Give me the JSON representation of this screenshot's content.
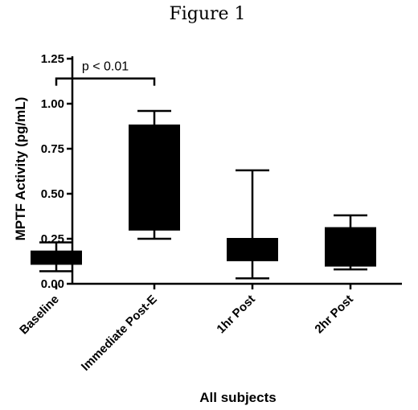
{
  "chart_data": {
    "type": "box",
    "title": "Figure 1",
    "xlabel": "All subjects",
    "ylabel": "MPTF Activity (pg/mL)",
    "ylim": [
      0,
      1.25
    ],
    "yticks": [
      "0.00",
      "0.25",
      "0.50",
      "0.75",
      "1.00",
      "1.25"
    ],
    "categories": [
      "Baseline",
      "Immediate Post-E",
      "1hr Post",
      "2hr Post"
    ],
    "boxes": [
      {
        "category": "Baseline",
        "min": 0.07,
        "q1": 0.11,
        "median": 0.14,
        "q3": 0.18,
        "max": 0.23
      },
      {
        "category": "Immediate Post-E",
        "min": 0.25,
        "q1": 0.3,
        "median": 0.6,
        "q3": 0.88,
        "max": 0.96
      },
      {
        "category": "1hr Post",
        "min": 0.03,
        "q1": 0.13,
        "median": 0.19,
        "q3": 0.25,
        "max": 0.63
      },
      {
        "category": "2hr Post",
        "min": 0.08,
        "q1": 0.1,
        "median": 0.2,
        "q3": 0.31,
        "max": 0.38
      }
    ],
    "annotations": [
      {
        "text": "p < 0.01",
        "from": "Baseline",
        "to": "Immediate Post-E",
        "y": 1.14
      }
    ],
    "grid": false,
    "legend": "none",
    "box_color": "#000000"
  }
}
